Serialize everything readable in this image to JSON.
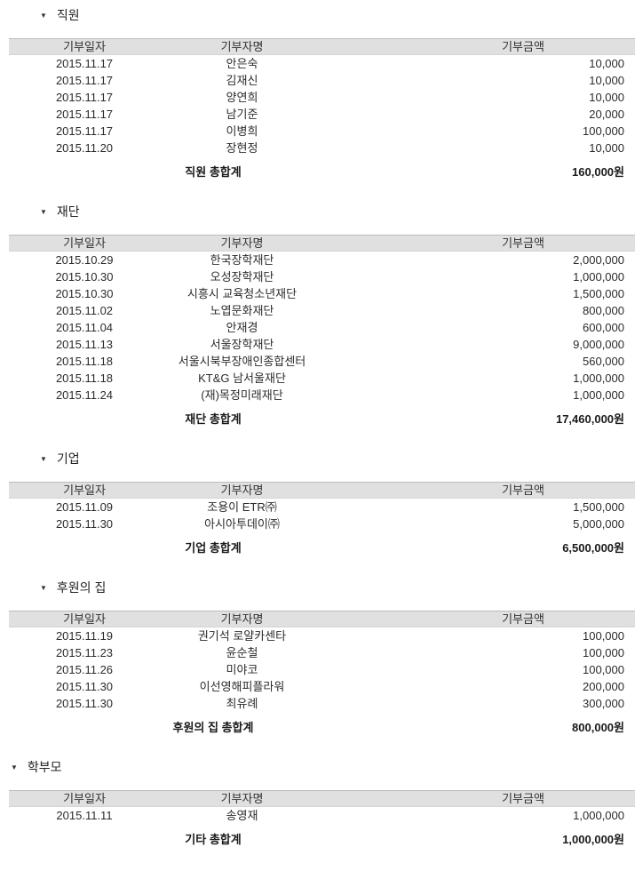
{
  "report": {
    "collapse_icon": "▼",
    "colors": {
      "header_bg": "#e0e0e0"
    },
    "columns": {
      "date": "기부일자",
      "name": "기부자명",
      "amount": "기부금액"
    },
    "sections": [
      {
        "title": "직원",
        "outdented": false,
        "rows": [
          {
            "date": "2015.11.17",
            "name": "안은숙",
            "amount": "10,000"
          },
          {
            "date": "2015.11.17",
            "name": "김재신",
            "amount": "10,000"
          },
          {
            "date": "2015.11.17",
            "name": "양연희",
            "amount": "10,000"
          },
          {
            "date": "2015.11.17",
            "name": "남기준",
            "amount": "20,000"
          },
          {
            "date": "2015.11.17",
            "name": "이병희",
            "amount": "100,000"
          },
          {
            "date": "2015.11.20",
            "name": "장현정",
            "amount": "10,000"
          }
        ],
        "total_label": "직원 총합계",
        "total_amount": "160,000원"
      },
      {
        "title": "재단",
        "outdented": false,
        "rows": [
          {
            "date": "2015.10.29",
            "name": "한국장학재단",
            "amount": "2,000,000"
          },
          {
            "date": "2015.10.30",
            "name": "오성장학재단",
            "amount": "1,000,000"
          },
          {
            "date": "2015.10.30",
            "name": "시흥시 교육청소년재단",
            "amount": "1,500,000"
          },
          {
            "date": "2015.11.02",
            "name": "노엽문화재단",
            "amount": "800,000"
          },
          {
            "date": "2015.11.04",
            "name": "안재경",
            "amount": "600,000"
          },
          {
            "date": "2015.11.13",
            "name": "서울장학재단",
            "amount": "9,000,000"
          },
          {
            "date": "2015.11.18",
            "name": "서울시북부장애인종합센터",
            "amount": "560,000"
          },
          {
            "date": "2015.11.18",
            "name": "KT&G 남서울재단",
            "amount": "1,000,000"
          },
          {
            "date": "2015.11.24",
            "name": "(재)목정미래재단",
            "amount": "1,000,000"
          }
        ],
        "total_label": "재단 총합계",
        "total_amount": "17,460,000원"
      },
      {
        "title": "기업",
        "outdented": false,
        "rows": [
          {
            "date": "2015.11.09",
            "name": "조용이 ETR㈜",
            "amount": "1,500,000"
          },
          {
            "date": "2015.11.30",
            "name": "아시아투데이㈜",
            "amount": "5,000,000"
          }
        ],
        "total_label": "기업 총합계",
        "total_amount": "6,500,000원"
      },
      {
        "title": "후원의 집",
        "outdented": false,
        "rows": [
          {
            "date": "2015.11.19",
            "name": "권기석 로얄카센타",
            "amount": "100,000"
          },
          {
            "date": "2015.11.23",
            "name": "윤순철",
            "amount": "100,000"
          },
          {
            "date": "2015.11.26",
            "name": "미야코",
            "amount": "100,000"
          },
          {
            "date": "2015.11.30",
            "name": "이선영해피플라워",
            "amount": "200,000"
          },
          {
            "date": "2015.11.30",
            "name": "최유례",
            "amount": "300,000"
          }
        ],
        "total_label": "후원의 집 총합계",
        "total_amount": "800,000원"
      },
      {
        "title": "학부모",
        "outdented": true,
        "rows": [
          {
            "date": "2015.11.11",
            "name": "송영재",
            "amount": "1,000,000"
          }
        ],
        "total_label": "기타 총합계",
        "total_amount": "1,000,000원"
      }
    ]
  }
}
